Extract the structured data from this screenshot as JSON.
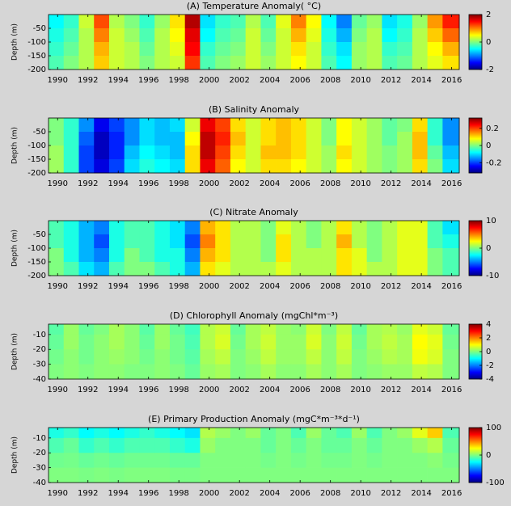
{
  "chart_data": [
    {
      "type": "heatmap",
      "title": "(A) Temperature Anomaly( °C)",
      "ylabel": "Depth (m)",
      "colormap": "jet",
      "xbins": [
        1989.4,
        1990.4,
        1991.4,
        1992.4,
        1993.4,
        1994.4,
        1995.4,
        1996.4,
        1997.4,
        1998.4,
        1999.4,
        2000.4,
        2001.4,
        2002.4,
        2003.4,
        2004.4,
        2005.4,
        2006.4,
        2007.4,
        2008.4,
        2009.4,
        2010.4,
        2011.4,
        2012.4,
        2013.4,
        2014.4,
        2015.4,
        2016.5
      ],
      "ybins": [
        0,
        -50,
        -100,
        -150,
        -200
      ],
      "z": [
        [
          -0.5,
          -0.3,
          0.3,
          1.2,
          0.2,
          0.0,
          -0.3,
          0.1,
          0.6,
          1.8,
          -0.6,
          -0.3,
          -0.2,
          0.2,
          -0.2,
          0.4,
          1.0,
          0.5,
          -0.5,
          -1.0,
          -0.1,
          0.1,
          -0.6,
          -0.4,
          0.1,
          0.9,
          1.4
        ],
        [
          -0.4,
          -0.2,
          0.2,
          1.0,
          0.3,
          0.1,
          -0.2,
          0.2,
          0.5,
          1.6,
          -0.5,
          -0.2,
          -0.1,
          0.3,
          -0.1,
          0.3,
          0.8,
          0.4,
          -0.4,
          -0.8,
          0.0,
          0.2,
          -0.5,
          -0.3,
          0.2,
          0.7,
          1.1
        ],
        [
          -0.3,
          -0.1,
          0.2,
          0.8,
          0.3,
          0.2,
          -0.1,
          0.2,
          0.4,
          1.5,
          -0.3,
          -0.1,
          0.0,
          0.3,
          0.0,
          0.3,
          0.6,
          0.3,
          -0.3,
          -0.6,
          0.1,
          0.2,
          -0.3,
          -0.2,
          0.2,
          0.5,
          0.8
        ],
        [
          -0.2,
          0.0,
          0.2,
          0.7,
          0.3,
          0.2,
          0.0,
          0.2,
          0.3,
          1.3,
          -0.2,
          0.0,
          0.1,
          0.3,
          0.1,
          0.3,
          0.5,
          0.3,
          -0.2,
          -0.5,
          0.1,
          0.2,
          -0.2,
          -0.1,
          0.2,
          0.4,
          0.6
        ]
      ],
      "xlim": [
        1989.4,
        2016.5
      ],
      "ylim": [
        -200,
        0
      ],
      "xticks": [
        1990,
        1992,
        1994,
        1996,
        1998,
        2000,
        2002,
        2004,
        2006,
        2008,
        2010,
        2012,
        2014,
        2016
      ],
      "yticks": [
        -50,
        -100,
        -150,
        -200
      ],
      "clim": [
        -2,
        2
      ],
      "cticks": [
        2,
        0,
        -2
      ]
    },
    {
      "type": "heatmap",
      "title": "(B) Salinity Anomaly",
      "ylabel": "Depth (m)",
      "colormap": "jet",
      "xbins": [
        1989.4,
        1990.4,
        1991.4,
        1992.4,
        1993.4,
        1994.4,
        1995.4,
        1996.4,
        1997.4,
        1998.4,
        1999.4,
        2000.4,
        2001.4,
        2002.4,
        2003.4,
        2004.4,
        2005.4,
        2006.4,
        2007.4,
        2008.4,
        2009.4,
        2010.4,
        2011.4,
        2012.4,
        2013.4,
        2014.4,
        2015.4,
        2016.5
      ],
      "ybins": [
        0,
        -50,
        -100,
        -150,
        -200
      ],
      "z": [
        [
          0.0,
          -0.05,
          -0.15,
          -0.25,
          -0.2,
          -0.15,
          -0.1,
          -0.12,
          -0.1,
          0.05,
          0.25,
          0.2,
          0.1,
          0.05,
          0.1,
          0.12,
          0.1,
          0.05,
          0.0,
          0.08,
          0.05,
          0.02,
          -0.02,
          0.0,
          0.1,
          -0.05,
          -0.15
        ],
        [
          0.0,
          -0.05,
          -0.18,
          -0.28,
          -0.22,
          -0.15,
          -0.1,
          -0.12,
          -0.12,
          0.08,
          0.28,
          0.22,
          0.12,
          0.05,
          0.1,
          0.12,
          0.1,
          0.05,
          0.0,
          0.08,
          0.05,
          0.02,
          -0.02,
          0.02,
          0.12,
          -0.05,
          -0.15
        ],
        [
          0.02,
          -0.05,
          -0.2,
          -0.28,
          -0.22,
          -0.12,
          -0.08,
          -0.1,
          -0.12,
          0.1,
          0.28,
          0.2,
          0.1,
          0.05,
          0.12,
          0.12,
          0.1,
          0.05,
          0.02,
          0.1,
          0.05,
          0.02,
          0.0,
          0.02,
          0.12,
          -0.02,
          -0.12
        ],
        [
          0.02,
          -0.05,
          -0.2,
          -0.26,
          -0.2,
          -0.1,
          -0.06,
          -0.08,
          -0.1,
          0.1,
          0.25,
          0.18,
          0.08,
          0.05,
          0.1,
          0.1,
          0.08,
          0.05,
          0.02,
          0.08,
          0.05,
          0.02,
          0.0,
          0.02,
          0.1,
          0.0,
          -0.1
        ]
      ],
      "xlim": [
        1989.4,
        2016.5
      ],
      "ylim": [
        -200,
        0
      ],
      "xticks": [
        1990,
        1992,
        1994,
        1996,
        1998,
        2000,
        2002,
        2004,
        2006,
        2008,
        2010,
        2012,
        2014,
        2016
      ],
      "yticks": [
        -50,
        -100,
        -150,
        -200
      ],
      "clim": [
        -0.32,
        0.32
      ],
      "cticks": [
        0.2,
        0,
        -0.2
      ]
    },
    {
      "type": "heatmap",
      "title": "(C) Nitrate Anomaly",
      "ylabel": "Depth (m)",
      "colormap": "jet",
      "xbins": [
        1989.4,
        1990.4,
        1991.4,
        1992.4,
        1993.4,
        1994.4,
        1995.4,
        1996.4,
        1997.4,
        1998.4,
        1999.4,
        2000.4,
        2001.4,
        2002.4,
        2003.4,
        2004.4,
        2005.4,
        2006.4,
        2007.4,
        2008.4,
        2009.4,
        2010.4,
        2011.4,
        2012.4,
        2013.4,
        2014.4,
        2015.4,
        2016.5
      ],
      "ybins": [
        0,
        -50,
        -100,
        -150,
        -200
      ],
      "z": [
        [
          -1,
          -2,
          -4,
          -5,
          -2,
          -1,
          -1,
          -2,
          -3,
          -5,
          4,
          3,
          1,
          1,
          0,
          2,
          1,
          0,
          1,
          3,
          1,
          0,
          1,
          2,
          2,
          -1,
          -3
        ],
        [
          -1,
          -2,
          -4,
          -6,
          -2,
          -1,
          -1,
          -2,
          -3,
          -6,
          5,
          3,
          1,
          1,
          0,
          3,
          1,
          0,
          1,
          4,
          1,
          0,
          1,
          2,
          2,
          -1,
          -2
        ],
        [
          0,
          -2,
          -4,
          -5,
          -2,
          0,
          -1,
          -2,
          -2,
          -5,
          4,
          3,
          1,
          1,
          0,
          3,
          1,
          1,
          1,
          3,
          2,
          0,
          1,
          2,
          2,
          0,
          -1
        ],
        [
          0,
          -1,
          -3,
          -4,
          -1,
          0,
          0,
          -1,
          -2,
          -4,
          3,
          2,
          1,
          1,
          1,
          2,
          1,
          1,
          1,
          3,
          2,
          1,
          1,
          2,
          2,
          0,
          -1
        ]
      ],
      "xlim": [
        1989.4,
        2016.5
      ],
      "ylim": [
        -200,
        0
      ],
      "xticks": [
        1990,
        1992,
        1994,
        1996,
        1998,
        2000,
        2002,
        2004,
        2006,
        2008,
        2010,
        2012,
        2014,
        2016
      ],
      "yticks": [
        -50,
        -100,
        -150,
        -200
      ],
      "clim": [
        -10,
        10
      ],
      "cticks": [
        10,
        0,
        -10
      ]
    },
    {
      "type": "heatmap",
      "title": "(D) Chlorophyll Anomaly (mgChl*m⁻³)",
      "ylabel": "Depth (m)",
      "colormap": "jet",
      "xbins": [
        1989.4,
        1990.4,
        1991.4,
        1992.4,
        1993.4,
        1994.4,
        1995.4,
        1996.4,
        1997.4,
        1998.4,
        1999.4,
        2000.4,
        2001.4,
        2002.4,
        2003.4,
        2004.4,
        2005.4,
        2006.4,
        2007.4,
        2008.4,
        2009.4,
        2010.4,
        2011.4,
        2012.4,
        2013.4,
        2014.4,
        2015.4,
        2016.5
      ],
      "ybins": [
        -3,
        -10,
        -20,
        -30,
        -40
      ],
      "z": [
        [
          -0.3,
          0.2,
          -0.2,
          0.0,
          0.3,
          0.1,
          -0.3,
          0.2,
          -0.2,
          -0.5,
          0.4,
          0.6,
          -0.2,
          0.3,
          0.5,
          0.2,
          0.1,
          0.6,
          0.0,
          0.5,
          -0.2,
          0.3,
          0.4,
          0.2,
          0.8,
          0.6,
          -0.2
        ],
        [
          -0.2,
          0.2,
          -0.1,
          0.1,
          0.3,
          0.1,
          -0.2,
          0.2,
          -0.1,
          -0.4,
          0.4,
          0.7,
          -0.1,
          0.3,
          0.6,
          0.2,
          0.2,
          0.7,
          0.1,
          0.6,
          -0.1,
          0.3,
          0.5,
          0.3,
          1.0,
          0.8,
          -0.1
        ],
        [
          -0.1,
          0.1,
          -0.1,
          0.1,
          0.2,
          0.1,
          -0.1,
          0.1,
          -0.1,
          -0.3,
          0.3,
          0.5,
          0.0,
          0.2,
          0.5,
          0.2,
          0.2,
          0.5,
          0.1,
          0.5,
          0.0,
          0.2,
          0.4,
          0.3,
          0.9,
          0.7,
          0.0
        ],
        [
          0.0,
          0.1,
          0.0,
          0.1,
          0.1,
          0.0,
          0.0,
          0.1,
          0.0,
          -0.2,
          0.2,
          0.3,
          0.0,
          0.1,
          0.3,
          0.1,
          0.1,
          0.3,
          0.1,
          0.3,
          0.0,
          0.1,
          0.2,
          0.2,
          0.5,
          0.4,
          0.0
        ]
      ],
      "xlim": [
        1989.4,
        2016.5
      ],
      "ylim": [
        -40,
        -3
      ],
      "xticks": [
        1990,
        1992,
        1994,
        1996,
        1998,
        2000,
        2002,
        2004,
        2006,
        2008,
        2010,
        2012,
        2014,
        2016
      ],
      "yticks": [
        -10,
        -20,
        -30,
        -40
      ],
      "clim": [
        -4,
        4
      ],
      "cticks": [
        4,
        2,
        0,
        -2,
        -4
      ]
    },
    {
      "type": "heatmap",
      "title": "(E) Primary Production Anomaly (mgC*m⁻³*d⁻¹)",
      "ylabel": "Depth (m)",
      "colormap": "jet",
      "xbins": [
        1989.4,
        1990.4,
        1991.4,
        1992.4,
        1993.4,
        1994.4,
        1995.4,
        1996.4,
        1997.4,
        1998.4,
        1999.4,
        2000.4,
        2001.4,
        2002.4,
        2003.4,
        2004.4,
        2005.4,
        2006.4,
        2007.4,
        2008.4,
        2009.4,
        2010.4,
        2011.4,
        2012.4,
        2013.4,
        2014.4,
        2015.4,
        2016.5
      ],
      "ybins": [
        -3,
        -10,
        -20,
        -30,
        -40
      ],
      "z": [
        [
          -20,
          -15,
          -25,
          -20,
          -25,
          -20,
          -15,
          -20,
          -25,
          -30,
          10,
          5,
          0,
          5,
          -5,
          0,
          -10,
          5,
          -5,
          -10,
          5,
          -10,
          0,
          5,
          20,
          35,
          -10
        ],
        [
          -10,
          -5,
          -15,
          -10,
          -15,
          -10,
          -10,
          -10,
          -15,
          -20,
          5,
          0,
          0,
          0,
          -5,
          0,
          -5,
          0,
          -5,
          -5,
          0,
          -5,
          0,
          0,
          5,
          10,
          -5
        ],
        [
          -3,
          -2,
          -5,
          -3,
          -5,
          -3,
          -3,
          -3,
          -5,
          -5,
          0,
          0,
          0,
          0,
          -2,
          0,
          -2,
          0,
          -2,
          -2,
          0,
          -2,
          0,
          0,
          0,
          2,
          -2
        ],
        [
          0,
          0,
          -1,
          0,
          -1,
          0,
          0,
          0,
          -1,
          -1,
          0,
          0,
          0,
          0,
          0,
          0,
          0,
          0,
          0,
          0,
          0,
          0,
          0,
          0,
          0,
          0,
          0
        ]
      ],
      "xlim": [
        1989.4,
        2016.5
      ],
      "ylim": [
        -40,
        -3
      ],
      "xticks": [
        1990,
        1992,
        1994,
        1996,
        1998,
        2000,
        2002,
        2004,
        2006,
        2008,
        2010,
        2012,
        2014,
        2016
      ],
      "yticks": [
        -10,
        -20,
        -30,
        -40
      ],
      "clim": [
        -100,
        100
      ],
      "cticks": [
        100,
        0,
        -100
      ]
    }
  ]
}
